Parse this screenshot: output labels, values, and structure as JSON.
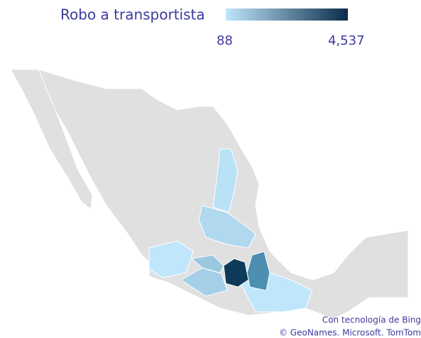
{
  "title": "Robo a transportista",
  "legend": {
    "min": 88,
    "max": {
      "value": 4537,
      "label": "4,537"
    },
    "color_low": "#bfe6fb",
    "color_high": "#0b2c4a"
  },
  "attribution": [
    "Con tecnología de Bing",
    "© GeoNames. Microsoft. TomTom"
  ]
}
